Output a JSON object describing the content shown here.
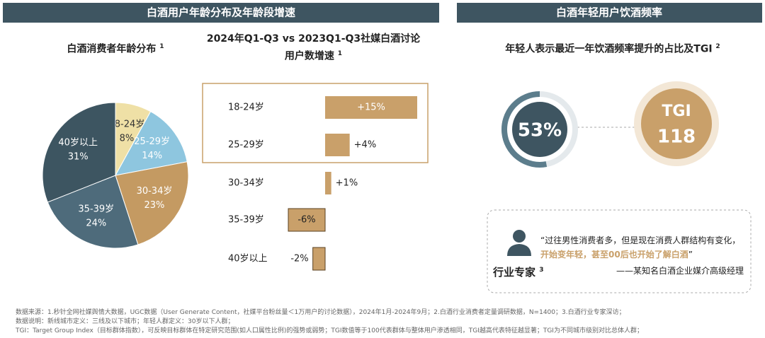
{
  "headers": {
    "left": "白酒用户年龄分布及年龄段增速",
    "right": "白酒年轻用户饮酒频率"
  },
  "chart_data": [
    {
      "type": "pie",
      "title": "白酒消费者年龄分布",
      "footnote": "1",
      "categories": [
        "18-24岁",
        "25-29岁",
        "30-34岁",
        "35-39岁",
        "40岁以上"
      ],
      "values": [
        8,
        14,
        23,
        24,
        31
      ],
      "value_labels": [
        "8%",
        "14%",
        "23%",
        "24%",
        "31%"
      ],
      "colors": [
        "#efe0a6",
        "#8ec6df",
        "#c49a62",
        "#4e6b7b",
        "#3d5561"
      ]
    },
    {
      "type": "hbar",
      "title": "2024年Q1-Q3 vs 2023Q1-Q3社媒白酒讨论用户数增速",
      "footnote": "1",
      "categories": [
        "18-24岁",
        "25-29岁",
        "30-34岁",
        "35-39岁",
        "40岁以上"
      ],
      "values": [
        15,
        4,
        1,
        -6,
        -2
      ],
      "value_labels": [
        "+15%",
        "+4%",
        "+1%",
        "-6%",
        "-2%"
      ],
      "color": "#c9a06a"
    },
    {
      "type": "gauge",
      "title": "年轻人表示最近一年饮酒频率提升的占比及TGI",
      "footnote": "2",
      "value": 53,
      "value_label": "53%",
      "tgi_label": "TGI",
      "tgi": 118,
      "color": "#5c7d8c",
      "tgi_color": "#c9a06a"
    }
  ],
  "expert": {
    "role": "行业专家",
    "footnote": "3",
    "quote_start": "“过往男性消费者多，但是现在消费人群结构有变化，",
    "quote_highlight": "开始变年轻，甚至00后也开始了解白酒",
    "quote_end": "”",
    "attribution": "——某知名白酒企业媒介高级经理"
  },
  "notes": [
    "数据来源：1.秒针全网社媒舆情大数据，UGC数据（User Generate Content，社媒平台粉丝量＜1万用户的讨论数据），2024年1月-2024年9月；2.白酒行业消费者定量调研数据，N=1400；3.白酒行业专家深访；",
    "数据说明：新线城市定义：三线及以下城市；年轻人群定义：30岁以下人群；",
    "TGI：Target Group Index（目标群体指数），可反映目标群体在特定研究范围(如人口属性比例)的强势或弱势；TGI数值等于100代表群体与整体用户渗透相同，TGI越高代表特征越显著；TGI为不同城市级别对比总体人群；"
  ]
}
